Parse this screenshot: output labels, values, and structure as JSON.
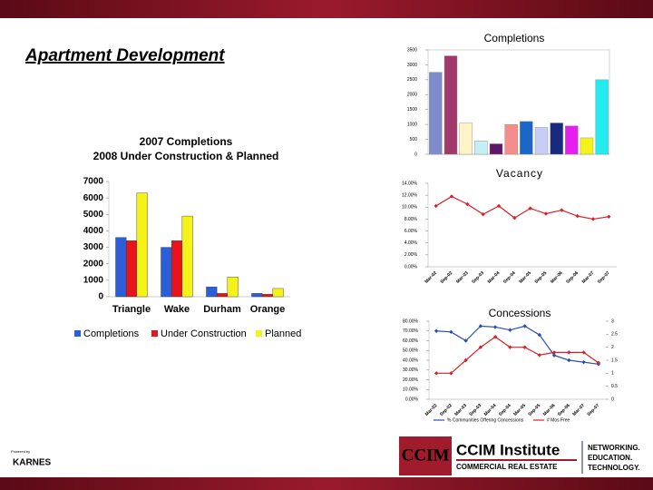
{
  "header": {
    "title": "Apartment Development"
  },
  "footer": {
    "powered": "Powered by",
    "karnes": "KARNES",
    "ccim": "CCIM",
    "institute": "CCIM Institute",
    "cre": "COMMERCIAL REAL ESTATE",
    "tagline": [
      "NETWORKING.",
      "EDUCATION.",
      "TECHNOLOGY."
    ]
  },
  "chart_data": [
    {
      "type": "bar",
      "title": "2007 Completions",
      "subtitle": "2008 Under Construction & Planned",
      "categories": [
        "Triangle",
        "Wake",
        "Durham",
        "Orange"
      ],
      "series": [
        {
          "name": "Completions",
          "color": "#2b5fd9",
          "values": [
            3600,
            3000,
            600,
            200
          ]
        },
        {
          "name": "Under Construction",
          "color": "#e8141a",
          "values": [
            3400,
            3400,
            200,
            150
          ]
        },
        {
          "name": "Planned",
          "color": "#f5f21a",
          "values": [
            6300,
            4900,
            1200,
            500
          ]
        }
      ],
      "ylim": [
        0,
        7000
      ],
      "yticks": [
        0,
        1000,
        2000,
        3000,
        4000,
        5000,
        6000,
        7000
      ]
    },
    {
      "type": "bar",
      "title": "Completions",
      "categories": [
        null,
        null,
        null,
        null,
        null,
        null,
        null,
        null,
        null,
        null,
        null,
        null
      ],
      "values": [
        2750,
        3300,
        1050,
        450,
        350,
        1000,
        1100,
        900,
        1050,
        950,
        550,
        2500
      ],
      "colors": [
        "#7f8ccc",
        "#a03a6a",
        "#fff4c8",
        "#c6eef5",
        "#5d1668",
        "#f58d8d",
        "#1a67c8",
        "#c8cdf5",
        "#182a80",
        "#e61ef0",
        "#f5f21a",
        "#22ecf0"
      ],
      "ylim": [
        0,
        3500
      ],
      "yticks": [
        0,
        500,
        1000,
        1500,
        2000,
        2500,
        3000,
        3500
      ]
    },
    {
      "type": "line",
      "title": "Vacancy",
      "categories": [
        "Mar-02",
        "Sep-02",
        "Mar-03",
        "Sep-03",
        "Mar-04",
        "Sep-04",
        "Mar-05",
        "Sep-05",
        "Mar-06",
        "Sep-06",
        "Mar-07",
        "Sep-07"
      ],
      "series": [
        {
          "name": null,
          "color": "#d8202a",
          "values": [
            10.2,
            11.8,
            10.5,
            8.8,
            10.2,
            8.2,
            9.8,
            8.9,
            9.5,
            8.5,
            8.0,
            8.4
          ]
        }
      ],
      "ylim": [
        0,
        14
      ],
      "yticks": [
        {
          "value": 0,
          "label": "0.00%"
        },
        {
          "value": 2,
          "label": "2.00%"
        },
        {
          "value": 4,
          "label": "4.00%"
        },
        {
          "value": 6,
          "label": "6.00%"
        },
        {
          "value": 8,
          "label": "8.00%"
        },
        {
          "value": 10,
          "label": "10.00%"
        },
        {
          "value": 12,
          "label": "12.00%"
        },
        {
          "value": 14,
          "label": "14.00%"
        }
      ]
    },
    {
      "type": "line",
      "title": "Concessions",
      "categories": [
        "Mar-02",
        "Sep-02",
        "Mar-03",
        "Sep-03",
        "Mar-04",
        "Sep-04",
        "Mar-05",
        "Sep-05",
        "Mar-06",
        "Sep-06",
        "Mar-07",
        "Sep-07"
      ],
      "series": [
        {
          "name": "% Communities Offering Concessions",
          "color": "#2b4fb0",
          "values": [
            70,
            69,
            60,
            75,
            74,
            71,
            75,
            66,
            45,
            40,
            38,
            36
          ]
        },
        {
          "name": "# Mos Free",
          "color": "#d8202a",
          "axis": "y2",
          "values": [
            1,
            1,
            1.5,
            2,
            2.4,
            2,
            2,
            1.7,
            1.8,
            1.8,
            1.8,
            1.4
          ]
        }
      ],
      "ylim": [
        0,
        80
      ],
      "yticks": [
        {
          "value": 0,
          "label": "0.00%"
        },
        {
          "value": 10,
          "label": "10.00%"
        },
        {
          "value": 20,
          "label": "20.00%"
        },
        {
          "value": 30,
          "label": "30.00%"
        },
        {
          "value": 40,
          "label": "40.00%"
        },
        {
          "value": 50,
          "label": "50.00%"
        },
        {
          "value": 60,
          "label": "60.00%"
        },
        {
          "value": 70,
          "label": "70.00%"
        },
        {
          "value": 80,
          "label": "80.00%"
        }
      ],
      "y2lim": [
        0,
        3
      ],
      "y2ticks": [
        0,
        0.5,
        1,
        1.5,
        2,
        2.5,
        3
      ]
    }
  ]
}
